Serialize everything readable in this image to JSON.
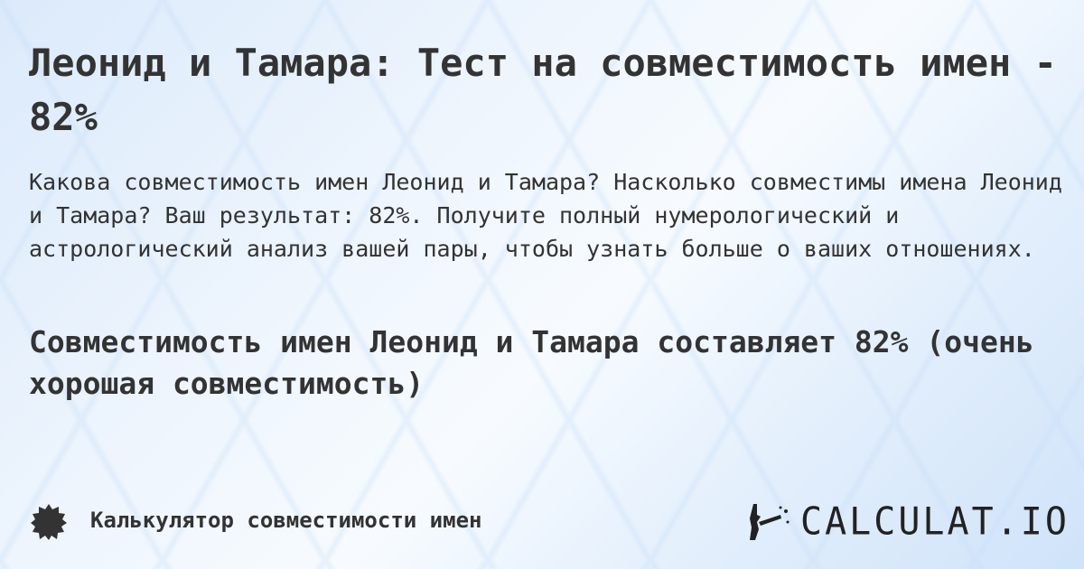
{
  "title": "Леонид и Тамара: Тест на совместимость имен - 82%",
  "description": "Какова совместимость имен Леонид и Тамара? Насколько совместимы имена Леонид и Тамара? Ваш результат: 82%. Получите полный нумерологический и астрологический анализ вашей пары, чтобы узнать больше о ваших отношениях.",
  "result": "Совместимость имен Леонид и Тамара составляет 82% (очень хорошая совместимость)",
  "footer": {
    "label": "Калькулятор совместимости имен",
    "badge_icon": "badge-icon",
    "logo_text": "CALCULAT.IO"
  }
}
